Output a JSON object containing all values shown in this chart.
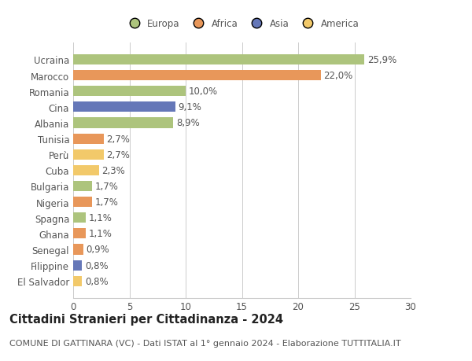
{
  "categories": [
    "El Salvador",
    "Filippine",
    "Senegal",
    "Ghana",
    "Spagna",
    "Nigeria",
    "Bulgaria",
    "Cuba",
    "Perù",
    "Tunisia",
    "Albania",
    "Cina",
    "Romania",
    "Marocco",
    "Ucraina"
  ],
  "values": [
    0.8,
    0.8,
    0.9,
    1.1,
    1.1,
    1.7,
    1.7,
    2.3,
    2.7,
    2.7,
    8.9,
    9.1,
    10.0,
    22.0,
    25.9
  ],
  "labels": [
    "0,8%",
    "0,8%",
    "0,9%",
    "1,1%",
    "1,1%",
    "1,7%",
    "1,7%",
    "2,3%",
    "2,7%",
    "2,7%",
    "8,9%",
    "9,1%",
    "10,0%",
    "22,0%",
    "25,9%"
  ],
  "colors": [
    "#f2c96a",
    "#6577b8",
    "#e8975a",
    "#e8975a",
    "#adc47d",
    "#e8975a",
    "#adc47d",
    "#f2c96a",
    "#f2c96a",
    "#e8975a",
    "#adc47d",
    "#6577b8",
    "#adc47d",
    "#e8975a",
    "#adc47d"
  ],
  "continent": [
    "America",
    "Asia",
    "Africa",
    "Africa",
    "Europa",
    "Africa",
    "Europa",
    "America",
    "America",
    "Africa",
    "Europa",
    "Asia",
    "Europa",
    "Africa",
    "Europa"
  ],
  "legend_labels": [
    "Europa",
    "Africa",
    "Asia",
    "America"
  ],
  "legend_colors": [
    "#adc47d",
    "#e8975a",
    "#6577b8",
    "#f2c96a"
  ],
  "title": "Cittadini Stranieri per Cittadinanza - 2024",
  "subtitle": "COMUNE DI GATTINARA (VC) - Dati ISTAT al 1° gennaio 2024 - Elaborazione TUTTITALIA.IT",
  "xlim": [
    0,
    30
  ],
  "xticks": [
    0,
    5,
    10,
    15,
    20,
    25,
    30
  ],
  "background_color": "#ffffff",
  "grid_color": "#cccccc",
  "bar_height": 0.65,
  "label_fontsize": 8.5,
  "tick_fontsize": 8.5,
  "title_fontsize": 10.5,
  "subtitle_fontsize": 8.0
}
